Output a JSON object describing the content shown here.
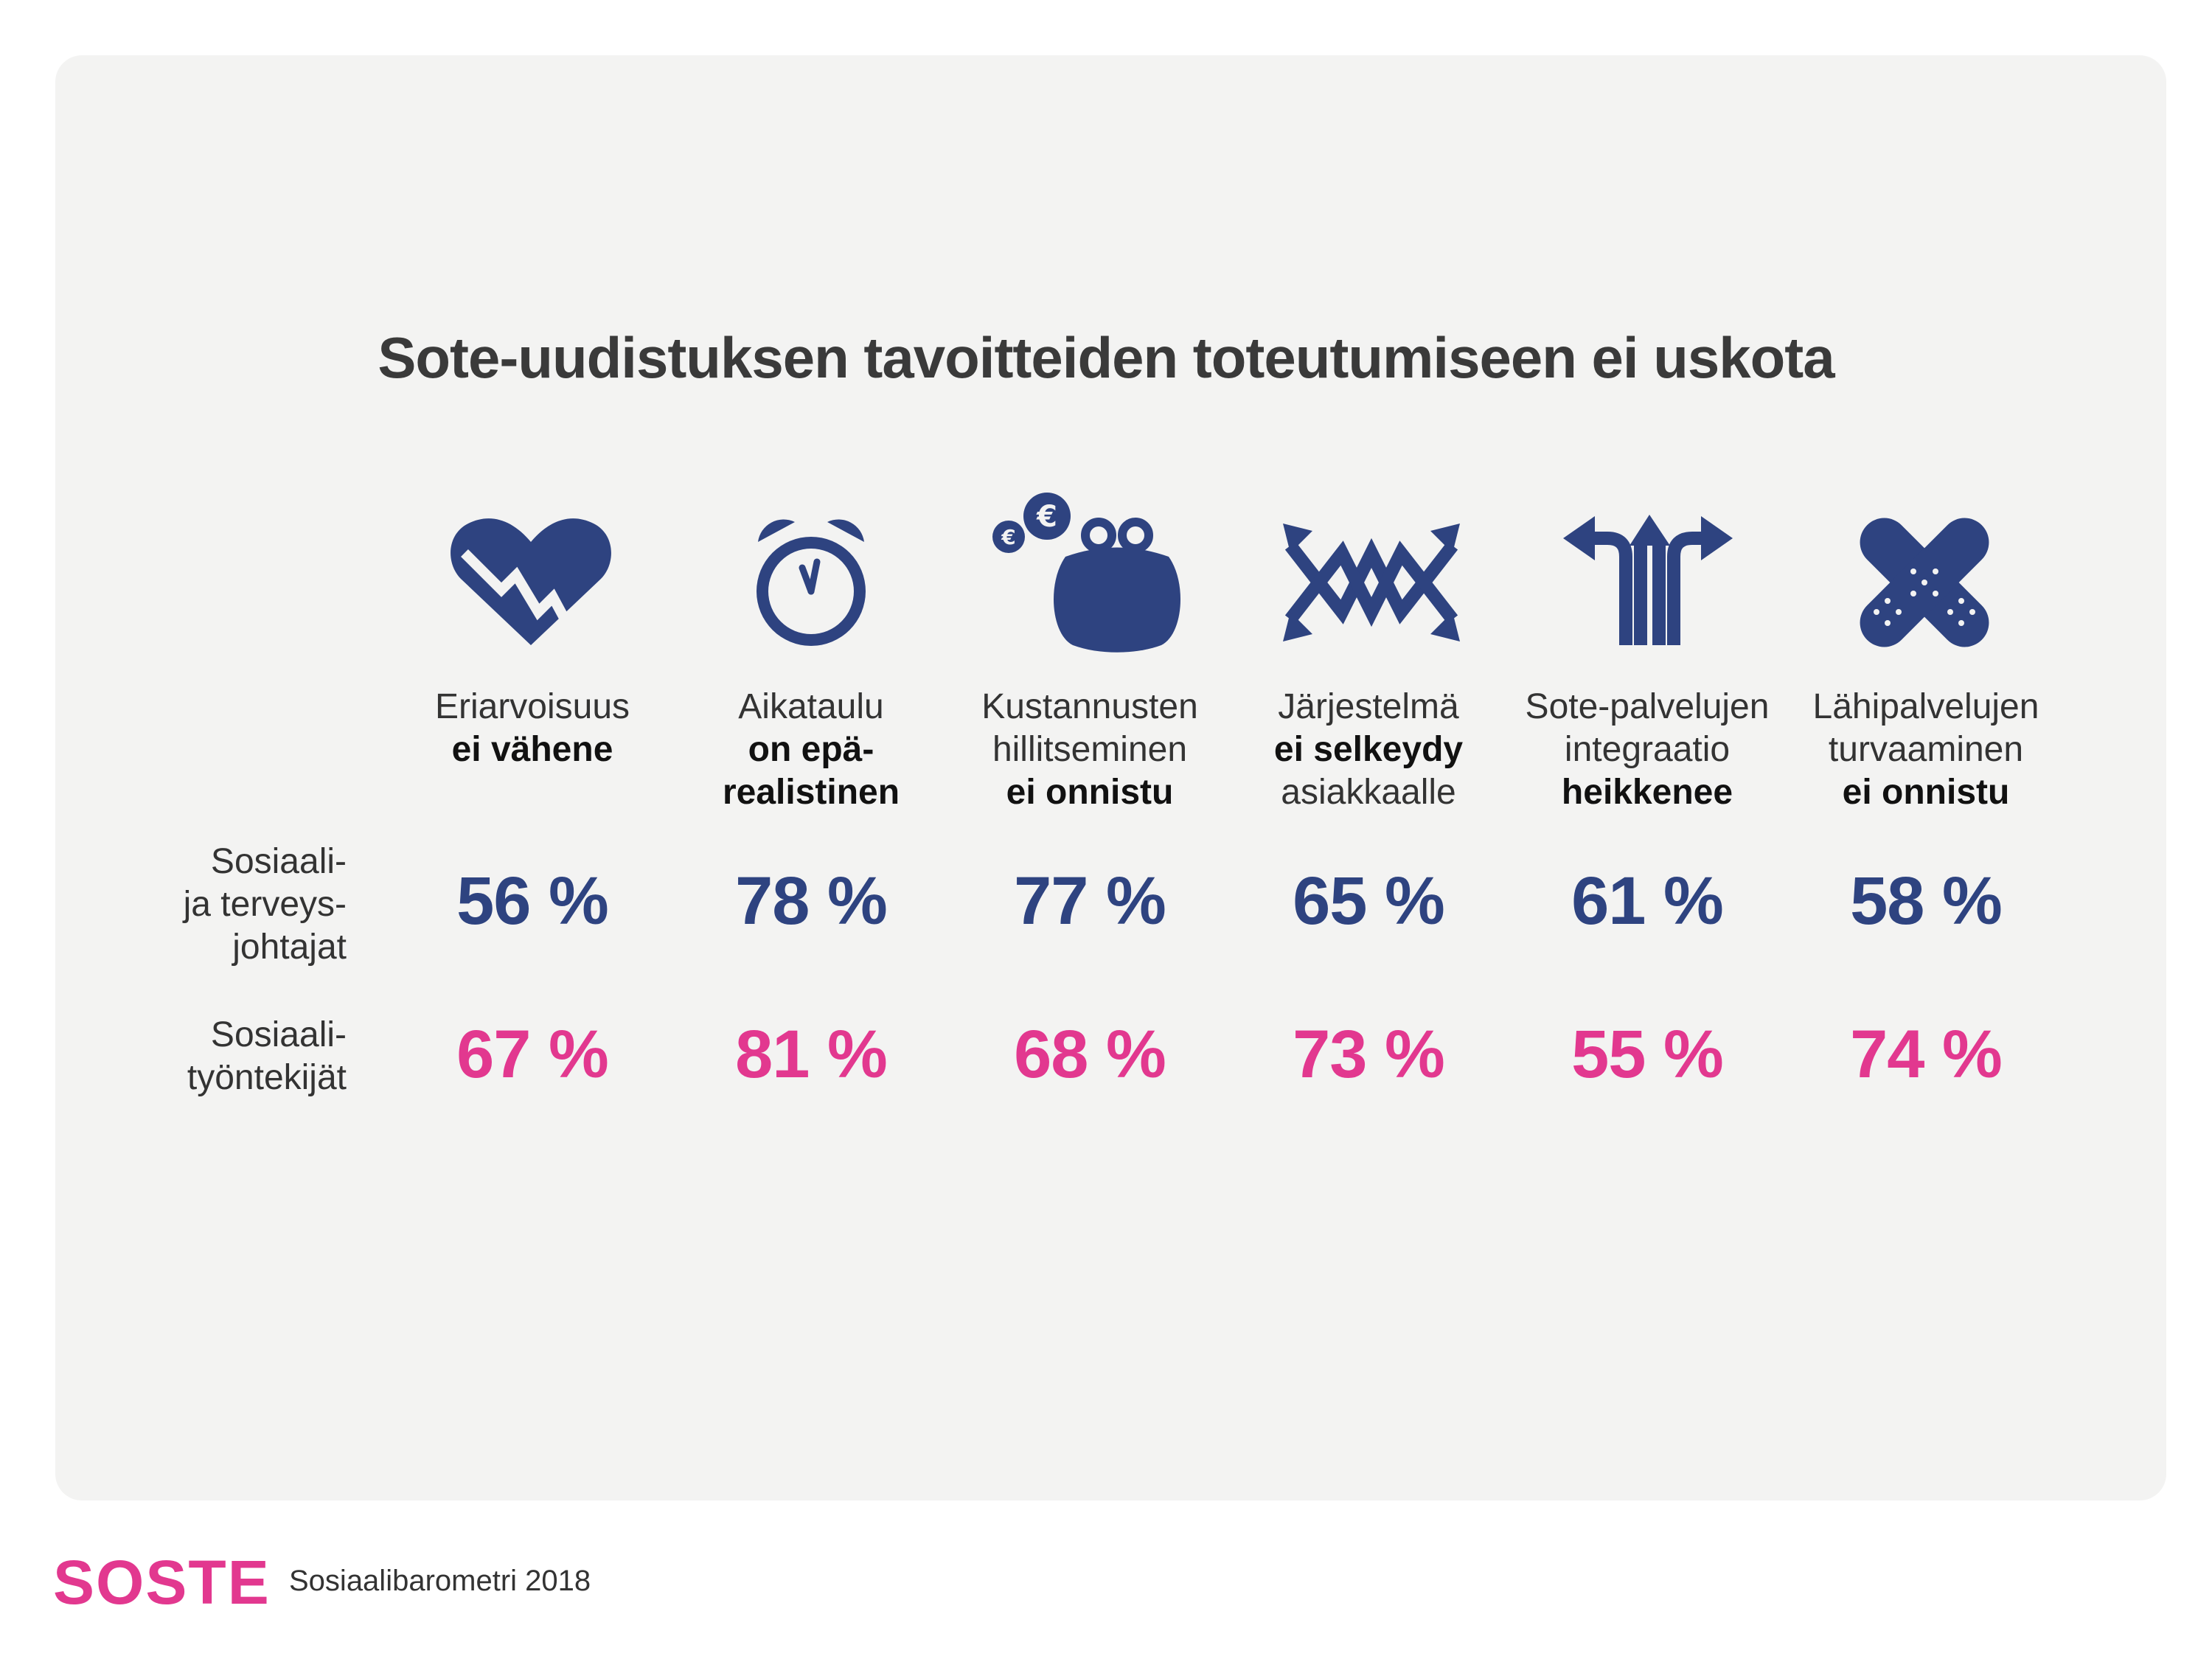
{
  "title": "Sote-uudistuksen tavoitteiden toteutumiseen ei uskota",
  "colors": {
    "navy": "#2e4380",
    "pink": "#e2388f",
    "panel": "#f3f3f2"
  },
  "chart_data": {
    "type": "table",
    "categories": [
      {
        "line1": "Eriarvoisuus",
        "line2": "ei vähene",
        "line3": "",
        "bold": [
          2
        ],
        "icon": "broken-heart-icon"
      },
      {
        "line1": "Aikataulu",
        "line2": "on epä-",
        "line3": "realistinen",
        "bold": [
          2,
          3
        ],
        "icon": "alarm-clock-icon"
      },
      {
        "line1": "Kustannusten",
        "line2": "hillitseminen",
        "line3": "ei onnistu",
        "bold": [
          3
        ],
        "icon": "coin-purse-icon"
      },
      {
        "line1": "Järjestelmä",
        "line2": "ei selkeydy",
        "line3": "asiakkaalle",
        "bold": [
          2
        ],
        "icon": "crossing-arrows-icon"
      },
      {
        "line1": "Sote-palvelujen",
        "line2": "integraatio",
        "line3": "heikkenee",
        "bold": [
          3
        ],
        "icon": "diverging-arrows-icon"
      },
      {
        "line1": "Lähipalvelujen",
        "line2": "turvaaminen",
        "line3": "ei onnistu",
        "bold": [
          3
        ],
        "icon": "bandage-icon"
      }
    ],
    "series": [
      {
        "name": "Sosiaali- ja terveys- johtajat",
        "label_lines": [
          "Sosiaali-",
          "ja terveys-",
          "johtajat"
        ],
        "values": [
          56,
          78,
          77,
          65,
          61,
          58
        ],
        "display": [
          "56 %",
          "78 %",
          "77 %",
          "65 %",
          "61 %",
          "58 %"
        ],
        "color": "#2e4380"
      },
      {
        "name": "Sosiaali- työntekijät",
        "label_lines": [
          "Sosiaali-",
          "työntekijät"
        ],
        "values": [
          67,
          81,
          68,
          73,
          55,
          74
        ],
        "display": [
          "67 %",
          "81 %",
          "68 %",
          "73 %",
          "55 %",
          "74 %"
        ],
        "color": "#e2388f"
      }
    ],
    "unit": "%"
  },
  "footer": {
    "logo": "SOSTE",
    "text": "Sosiaalibarometri 2018"
  }
}
